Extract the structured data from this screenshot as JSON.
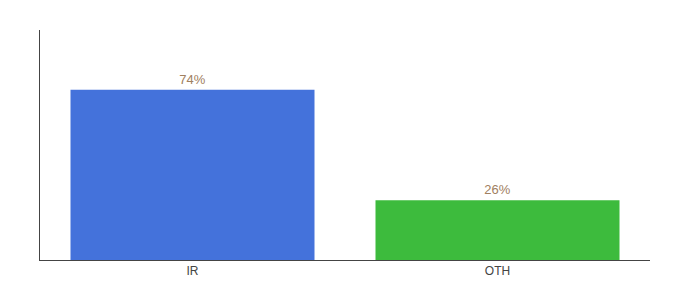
{
  "chart_data": {
    "type": "bar",
    "categories": [
      "IR",
      "OTH"
    ],
    "values": [
      74,
      26
    ],
    "value_labels": [
      "74%",
      "26%"
    ],
    "colors": [
      "#4472db",
      "#3dbb3d"
    ],
    "ylim": [
      0,
      100
    ],
    "yticks": [],
    "grid": false,
    "data_labels": true,
    "tick_labels": "x"
  }
}
